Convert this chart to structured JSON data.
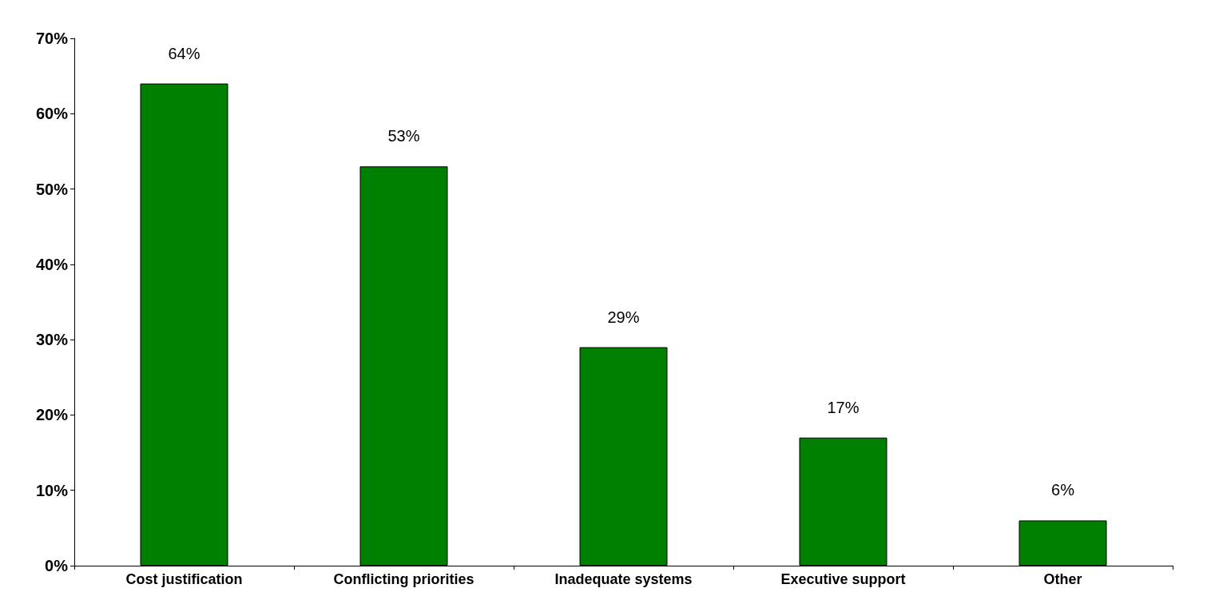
{
  "chart_data": {
    "type": "bar",
    "categories": [
      "Cost justification",
      "Conflicting priorities",
      "Inadequate systems",
      "Executive support",
      "Other"
    ],
    "values": [
      64,
      53,
      29,
      17,
      6
    ],
    "value_labels": [
      "64%",
      "53%",
      "29%",
      "17%",
      "6%"
    ],
    "color": "#008000",
    "ylim": [
      0,
      70
    ],
    "yticks": [
      {
        "value": 0,
        "label": "0%"
      },
      {
        "value": 10,
        "label": "10%"
      },
      {
        "value": 20,
        "label": "20%"
      },
      {
        "value": 30,
        "label": "30%"
      },
      {
        "value": 40,
        "label": "40%"
      },
      {
        "value": 50,
        "label": "50%"
      },
      {
        "value": 60,
        "label": "60%"
      },
      {
        "value": 70,
        "label": "70%"
      }
    ],
    "grid": false
  }
}
